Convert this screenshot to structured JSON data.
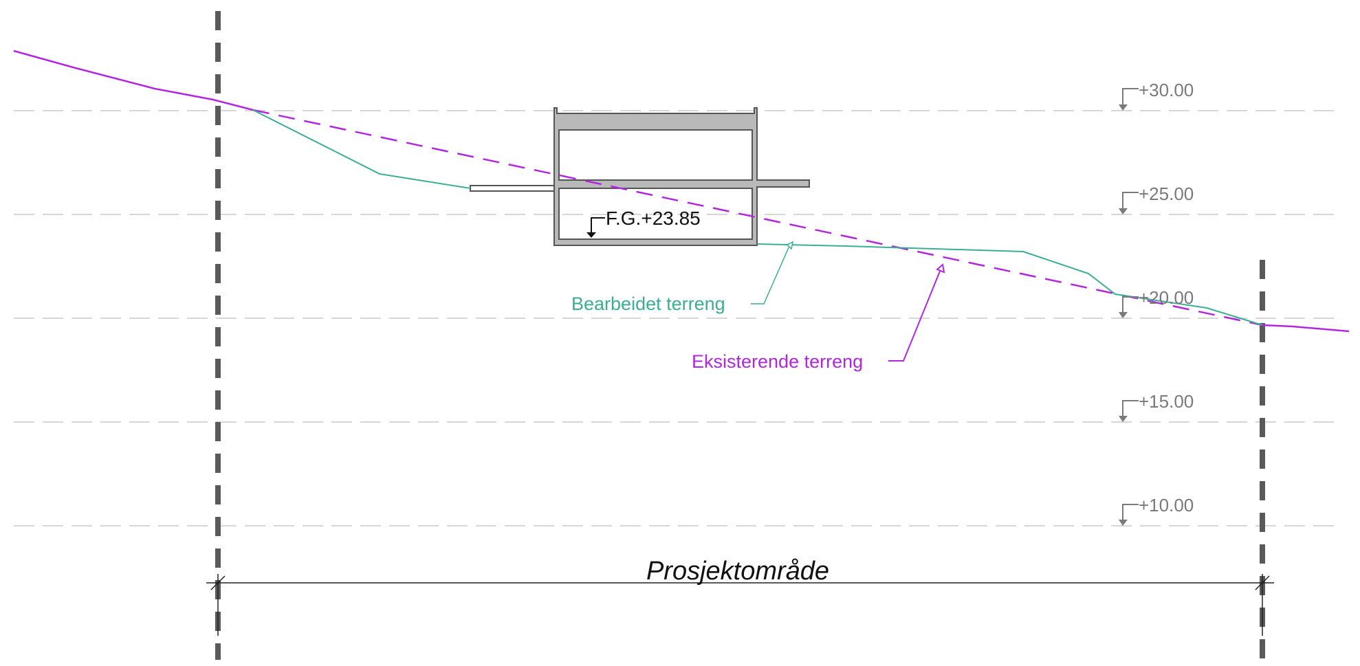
{
  "levels": [
    {
      "text": "+30.00",
      "value": 30
    },
    {
      "text": "+25.00",
      "value": 25
    },
    {
      "text": "+20.00",
      "value": 20
    },
    {
      "text": "+15.00",
      "value": 15
    },
    {
      "text": "+10.00",
      "value": 10
    }
  ],
  "floor_level": {
    "text": "F.G.+23.85",
    "value": 23.85
  },
  "labels": {
    "processed_terrain": "Bearbeidet terreng",
    "existing_terrain": "Eksisterende terreng",
    "project_area": "Prosjektområde"
  },
  "colors": {
    "existing_terrain": "#b326e0",
    "processed_terrain": "#3aae94",
    "structure_fill": "#b9b9b9",
    "structure_stroke": "#555555",
    "project_boundary": "#5a5a5a",
    "gridline": "#c8c8c8",
    "level_text": "#7a7a7a"
  }
}
